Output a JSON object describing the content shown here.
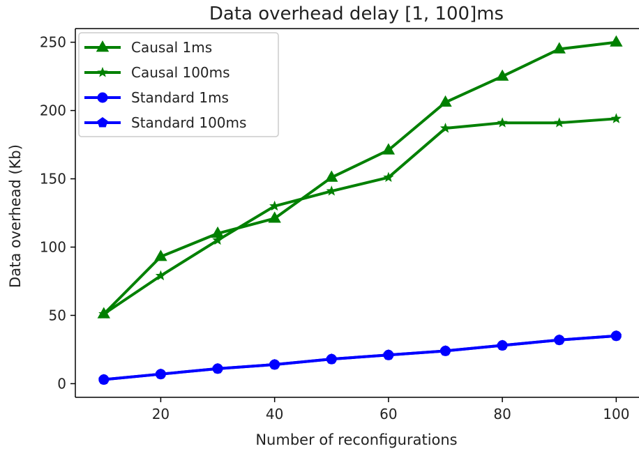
{
  "chart_data": {
    "type": "line",
    "title": "Data overhead delay [1, 100]ms",
    "xlabel": "Number of reconfigurations",
    "ylabel": "Data overhead (Kb)",
    "x": [
      10,
      20,
      30,
      40,
      50,
      60,
      70,
      80,
      90,
      100
    ],
    "xlim": [
      5,
      104
    ],
    "ylim": [
      -10,
      260
    ],
    "xticks": [
      20,
      40,
      60,
      80,
      100
    ],
    "yticks": [
      0,
      50,
      100,
      150,
      200,
      250
    ],
    "grid": false,
    "legend_position": "top-left",
    "series": [
      {
        "name": "Causal 1ms",
        "color": "#008000",
        "marker": "triangle",
        "values": [
          51,
          93,
          110,
          121,
          151,
          171,
          206,
          225,
          245,
          250
        ]
      },
      {
        "name": "Causal 100ms",
        "color": "#008000",
        "marker": "star",
        "values": [
          51,
          79,
          105,
          130,
          141,
          151,
          187,
          191,
          191,
          194
        ]
      },
      {
        "name": "Standard 1ms",
        "color": "#0000ff",
        "marker": "circle",
        "values": [
          3,
          7,
          11,
          14,
          18,
          21,
          24,
          28,
          32,
          35
        ]
      },
      {
        "name": "Standard 100ms",
        "color": "#0000ff",
        "marker": "pentagon",
        "values": [
          3,
          7,
          11,
          14,
          18,
          21,
          24,
          28,
          32,
          35
        ]
      }
    ]
  }
}
